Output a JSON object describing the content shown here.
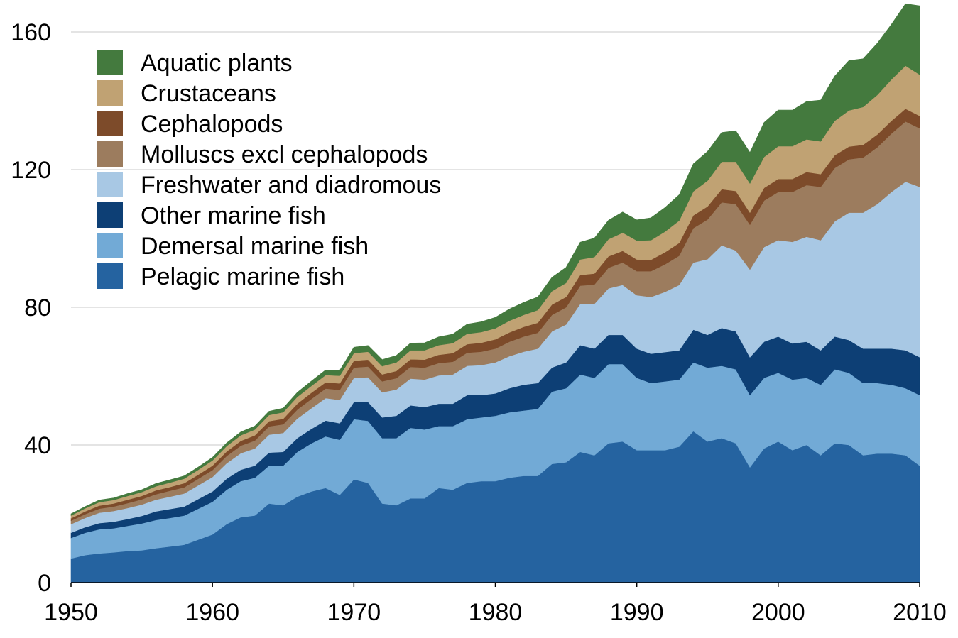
{
  "chart_data": {
    "type": "area",
    "stacked": true,
    "title": "",
    "xlabel": "",
    "ylabel": "",
    "x": [
      1950,
      1951,
      1952,
      1953,
      1954,
      1955,
      1956,
      1957,
      1958,
      1959,
      1960,
      1961,
      1962,
      1963,
      1964,
      1965,
      1966,
      1967,
      1968,
      1969,
      1970,
      1971,
      1972,
      1973,
      1974,
      1975,
      1976,
      1977,
      1978,
      1979,
      1980,
      1981,
      1982,
      1983,
      1984,
      1985,
      1986,
      1987,
      1988,
      1989,
      1990,
      1991,
      1992,
      1993,
      1994,
      1995,
      1996,
      1997,
      1998,
      1999,
      2000,
      2001,
      2002,
      2003,
      2004,
      2005,
      2006,
      2007,
      2008,
      2009,
      2010
    ],
    "xlim": [
      1950,
      2010
    ],
    "ylim": [
      0,
      160
    ],
    "x_ticks": [
      "1950",
      "1960",
      "1970",
      "1980",
      "1990",
      "2000",
      "2010"
    ],
    "y_ticks": [
      "0",
      "40",
      "80",
      "120",
      "160"
    ],
    "grid": "horizontal",
    "legend_position": "top-left",
    "series": [
      {
        "name": "Pelagic marine fish",
        "color": "#2563a0",
        "values": [
          7,
          8,
          8.5,
          8.8,
          9.2,
          9.4,
          10,
          10.5,
          11,
          12.5,
          14,
          17,
          19,
          19.5,
          23,
          22.5,
          25,
          26.5,
          27.5,
          25.5,
          30,
          29,
          23,
          22.5,
          24.5,
          24.5,
          27.5,
          27,
          29,
          29.5,
          29.5,
          30.5,
          31,
          31,
          34.5,
          35,
          38,
          37,
          40.5,
          41,
          38.5,
          38.5,
          38.5,
          39.5,
          44,
          41,
          42,
          40.5,
          33.5,
          39,
          41,
          38.5,
          40,
          37,
          40.5,
          40,
          37,
          37.5,
          37.5,
          37,
          34
        ]
      },
      {
        "name": "Demersal marine fish",
        "color": "#72aad6",
        "values": [
          6,
          6.5,
          7,
          7,
          7.3,
          7.8,
          8.2,
          8.3,
          8.5,
          9,
          9.5,
          10,
          10.5,
          11,
          11,
          11.5,
          13,
          14,
          15,
          16,
          17.5,
          18,
          19,
          19.5,
          20.5,
          20,
          18,
          18.5,
          18.5,
          18.5,
          19,
          19,
          19,
          19.5,
          21,
          21.5,
          22.5,
          22.5,
          23,
          22.5,
          21,
          19.5,
          20,
          19.5,
          20,
          21.5,
          21,
          21.5,
          21,
          20.5,
          20,
          20.5,
          19.5,
          20.5,
          21.5,
          21,
          21,
          20.5,
          20,
          19.5,
          20.5
        ]
      },
      {
        "name": "Other marine fish",
        "color": "#0d3f75",
        "values": [
          1.5,
          1.6,
          1.8,
          1.9,
          2,
          2.2,
          2.5,
          2.6,
          2.6,
          2.8,
          3,
          3.2,
          3.3,
          3.5,
          3.8,
          4,
          4,
          4.2,
          4.6,
          4.8,
          5,
          5.5,
          6,
          6.5,
          6.5,
          6.5,
          6.5,
          6.5,
          7,
          6.5,
          6.5,
          7,
          7.5,
          7.5,
          7,
          7.5,
          8.5,
          8.5,
          8.5,
          8.5,
          8.5,
          8.5,
          8.5,
          8.5,
          9.5,
          9.5,
          11,
          11,
          11,
          10.5,
          10.5,
          10.5,
          10.5,
          10,
          9.5,
          9.5,
          10,
          10,
          10.5,
          11,
          11
        ]
      },
      {
        "name": "Freshwater and diadromous",
        "color": "#a8c8e4",
        "values": [
          2.5,
          2.7,
          3,
          3.1,
          3.2,
          3.3,
          3.4,
          3.6,
          3.8,
          4,
          4.2,
          4.5,
          4.8,
          5,
          5.2,
          5.5,
          5.7,
          6,
          6.5,
          6.8,
          7,
          7.2,
          7.3,
          7.6,
          7.8,
          8,
          8.2,
          8.5,
          8.5,
          8.7,
          9,
          9.3,
          9.6,
          10,
          10.5,
          11,
          12,
          13,
          13.5,
          14.5,
          15.5,
          16.5,
          17.5,
          19,
          19.5,
          22,
          24,
          23.5,
          25.5,
          27.5,
          28,
          29.5,
          30.5,
          32,
          33.5,
          37,
          39.5,
          42,
          45.5,
          49,
          49.5
        ]
      },
      {
        "name": "Molluscs excl cephalopods",
        "color": "#9c7c5e",
        "values": [
          1,
          1.1,
          1.2,
          1.3,
          1.4,
          1.5,
          1.6,
          1.7,
          1.8,
          1.9,
          2,
          2.1,
          2.2,
          2.3,
          2.4,
          2.5,
          2.6,
          2.7,
          2.8,
          2.9,
          3,
          3.1,
          3.2,
          3.3,
          3.4,
          3.5,
          3.6,
          3.7,
          3.8,
          3.9,
          4,
          4.2,
          4.4,
          4.6,
          4.8,
          5,
          5.3,
          5.6,
          6,
          6.5,
          7,
          7.5,
          8,
          8.5,
          10,
          11.5,
          12.5,
          13.5,
          13,
          13.5,
          14,
          14.5,
          15,
          15.5,
          15.5,
          15.5,
          16,
          16.5,
          17,
          17.5,
          17
        ]
      },
      {
        "name": "Cephalopods",
        "color": "#7d4b2a",
        "values": [
          0.7,
          0.8,
          0.9,
          0.9,
          1,
          1,
          1.1,
          1.1,
          1.2,
          1.2,
          1.3,
          1.3,
          1.4,
          1.5,
          1.5,
          1.6,
          1.7,
          1.8,
          1.8,
          1.9,
          2,
          2,
          2,
          2.1,
          2.2,
          2.3,
          2.4,
          2.5,
          2.5,
          2.6,
          2.7,
          2.7,
          2.8,
          2.9,
          3,
          3,
          3.1,
          3.2,
          3.3,
          3.4,
          3.4,
          3.3,
          3.5,
          3.7,
          3.7,
          3.8,
          3.8,
          3.8,
          3.5,
          3.7,
          3.8,
          3.8,
          3.8,
          3.7,
          3.7,
          3.7,
          3.7,
          3.7,
          3.7,
          3.7,
          3.6
        ]
      },
      {
        "name": "Crustaceans",
        "color": "#c0a273",
        "values": [
          0.8,
          0.9,
          1,
          1,
          1.1,
          1.1,
          1.2,
          1.3,
          1.3,
          1.4,
          1.5,
          1.6,
          1.6,
          1.7,
          1.8,
          1.9,
          2,
          2,
          2.1,
          2.2,
          2.2,
          2.3,
          2.4,
          2.5,
          2.6,
          2.7,
          2.8,
          2.9,
          3,
          3.1,
          3.2,
          3.4,
          3.5,
          3.7,
          3.9,
          4.1,
          4.5,
          4.8,
          5,
          5.3,
          5.5,
          5.7,
          6,
          6.5,
          7,
          7.5,
          8,
          8.5,
          8.5,
          9,
          9.5,
          9.5,
          9.5,
          9.5,
          10,
          10.5,
          11,
          11.5,
          12,
          12.5,
          12
        ]
      },
      {
        "name": "Aquatic plants",
        "color": "#447a3e",
        "values": [
          0.5,
          0.5,
          0.6,
          0.6,
          0.7,
          0.7,
          0.8,
          0.8,
          0.8,
          0.8,
          0.9,
          0.9,
          1,
          1,
          1.1,
          1.2,
          1.3,
          1.4,
          1.5,
          1.6,
          1.7,
          1.8,
          1.9,
          2,
          2.1,
          2.2,
          2.4,
          2.6,
          2.8,
          3,
          3.2,
          3.4,
          3.6,
          3.8,
          4,
          4.5,
          5,
          5.5,
          5.5,
          6,
          6,
          6.5,
          7,
          7.5,
          8,
          8.5,
          8.5,
          9,
          9,
          10,
          10.5,
          10.5,
          11,
          12,
          13,
          14.5,
          14,
          15,
          16,
          18,
          20
        ]
      }
    ]
  }
}
